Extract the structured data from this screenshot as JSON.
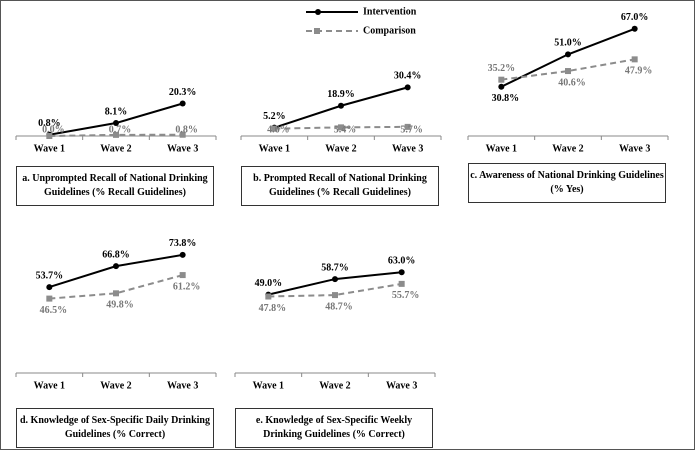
{
  "chart_data": [
    {
      "type": "line",
      "title": "a. Unprompted Recall of National Drinking Guidelines (% Recall Guidelines)",
      "categories": [
        "Wave 1",
        "Wave 2",
        "Wave 3"
      ],
      "series": [
        {
          "name": "Intervention",
          "color": "#000000",
          "values": [
            0.8,
            8.1,
            20.3
          ],
          "value_labels": [
            "0.8%",
            "8.1%",
            "20.3%"
          ]
        },
        {
          "name": "Comparison",
          "color": "#8c8c8c",
          "values": [
            0.0,
            0.7,
            0.8
          ],
          "value_labels": [
            "0.0%",
            "0.7%",
            "0.8%"
          ]
        }
      ]
    },
    {
      "type": "line",
      "title": "b. Prompted Recall of National Drinking Guidelines (% Recall Guidelines)",
      "categories": [
        "Wave 1",
        "Wave 2",
        "Wave 3"
      ],
      "series": [
        {
          "color": "#000000",
          "values": [
            5.2,
            18.9,
            30.4
          ],
          "value_labels": [
            "5.2%",
            "18.9%",
            "30.4%"
          ]
        },
        {
          "color": "#8c8c8c",
          "values": [
            4.6,
            5.4,
            5.7
          ],
          "value_labels": [
            "4.6%",
            "5.4%",
            "5.7%"
          ]
        }
      ]
    },
    {
      "type": "line",
      "title": "c. Awareness of National Drinking Guidelines (% Yes)",
      "categories": [
        "Wave 1",
        "Wave 2",
        "Wave 3"
      ],
      "series": [
        {
          "color": "#000000",
          "values": [
            30.8,
            51.0,
            67.0
          ],
          "value_labels": [
            "30.8%",
            "51.0%",
            "67.0%"
          ]
        },
        {
          "color": "#8c8c8c",
          "values": [
            35.2,
            40.6,
            47.9
          ],
          "value_labels": [
            "35.2%",
            "40.6%",
            "47.9%"
          ]
        }
      ]
    },
    {
      "type": "line",
      "title": "d. Knowledge of Sex-Specific Daily Drinking Guidelines (% Correct)",
      "categories": [
        "Wave 1",
        "Wave 2",
        "Wave 3"
      ],
      "series": [
        {
          "color": "#000000",
          "values": [
            53.7,
            66.8,
            73.8
          ],
          "value_labels": [
            "53.7%",
            "66.8%",
            "73.8%"
          ]
        },
        {
          "color": "#8c8c8c",
          "values": [
            46.5,
            49.8,
            61.2
          ],
          "value_labels": [
            "46.5%",
            "49.8%",
            "61.2%"
          ]
        }
      ]
    },
    {
      "type": "line",
      "title": "e. Knowledge of Sex-Specific Weekly Drinking Guidelines (% Correct)",
      "categories": [
        "Wave 1",
        "Wave 2",
        "Wave 3"
      ],
      "series": [
        {
          "color": "#000000",
          "values": [
            49.0,
            58.7,
            63.0
          ],
          "value_labels": [
            "49.0%",
            "58.7%",
            "63.0%"
          ]
        },
        {
          "color": "#8c8c8c",
          "values": [
            47.8,
            48.7,
            55.7
          ],
          "value_labels": [
            "47.8%",
            "48.7%",
            "55.7%"
          ]
        }
      ]
    }
  ]
}
